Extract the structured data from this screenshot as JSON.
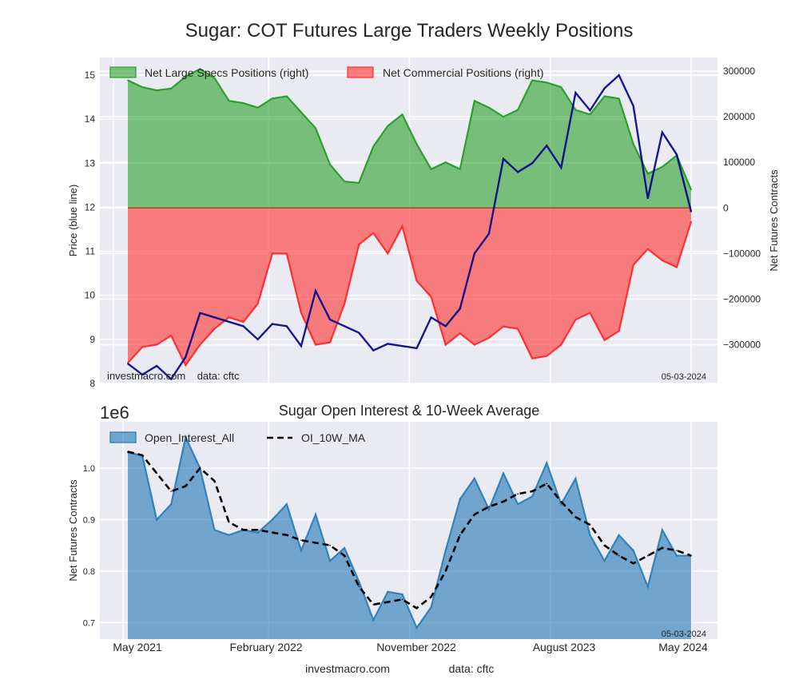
{
  "figure": {
    "title": "Sugar: COT Futures Large Traders Weekly Positions",
    "footer_site": "investmacro.com",
    "footer_data": "data: cftc"
  },
  "chart_data": [
    {
      "type": "area",
      "title": "Sugar: COT Futures Large Traders Weekly Positions",
      "ylabel_left": "Price (blue line)",
      "ylabel_right": "Net Futures Contracts",
      "ylim_left": [
        8,
        15.4
      ],
      "ylim_right": [
        -385000,
        330000
      ],
      "yticks_left": [
        "8",
        "9",
        "10",
        "11",
        "12",
        "13",
        "14",
        "15"
      ],
      "yticks_right": [
        "300000",
        "200000",
        "100000",
        "0",
        "-100000",
        "-200000",
        "-300000"
      ],
      "legend": [
        "Net Large Specs Positions (right)",
        "Net Commercial Positions (right)"
      ],
      "legend_placement": "top-left",
      "annotations": [
        "investmacro.com    data: cftc",
        "05-03-2024"
      ],
      "grid": true,
      "x_weeks": [
        0,
        4,
        8,
        12,
        16,
        20,
        24,
        28,
        32,
        36,
        40,
        44,
        48,
        52,
        56,
        60,
        64,
        68,
        72,
        76,
        80,
        84,
        88,
        92,
        96,
        100,
        104,
        108,
        112,
        116,
        120,
        124,
        128,
        132,
        136,
        140,
        144,
        148,
        152,
        156
      ],
      "series": [
        {
          "name": "Net Large Specs Positions (right)",
          "color": "#2ca02c",
          "values": [
            280000,
            265000,
            258000,
            262000,
            288000,
            305000,
            285000,
            235000,
            230000,
            220000,
            240000,
            245000,
            210000,
            175000,
            95000,
            58000,
            55000,
            135000,
            180000,
            205000,
            140000,
            85000,
            100000,
            85000,
            235000,
            220000,
            200000,
            215000,
            280000,
            275000,
            265000,
            215000,
            205000,
            245000,
            240000,
            140000,
            75000,
            90000,
            115000,
            40000
          ]
        },
        {
          "name": "Net Commercial Positions (right)",
          "color": "#ff2f2f",
          "values": [
            -340000,
            -305000,
            -300000,
            -280000,
            -345000,
            -300000,
            -265000,
            -240000,
            -250000,
            -210000,
            -100000,
            -100000,
            -230000,
            -300000,
            -295000,
            -210000,
            -80000,
            -55000,
            -100000,
            -40000,
            -160000,
            -195000,
            -300000,
            -275000,
            -300000,
            -285000,
            -260000,
            -265000,
            -330000,
            -325000,
            -300000,
            -245000,
            -230000,
            -290000,
            -270000,
            -125000,
            -90000,
            -115000,
            -130000,
            -30000
          ]
        },
        {
          "name": "Price (blue line)",
          "color": "#00008b",
          "values": [
            8.45,
            8.2,
            8.4,
            8.1,
            8.6,
            9.6,
            9.5,
            9.4,
            9.3,
            9.0,
            9.35,
            9.3,
            8.85,
            10.1,
            9.45,
            9.3,
            9.15,
            8.75,
            8.9,
            8.85,
            8.8,
            9.5,
            9.3,
            9.7,
            10.95,
            11.4,
            13.1,
            12.8,
            13.0,
            13.4,
            12.9,
            14.6,
            14.2,
            14.7,
            15.0,
            14.3,
            12.2,
            13.7,
            13.2,
            11.9
          ]
        }
      ]
    },
    {
      "type": "area",
      "title": "Sugar Open Interest & 10-Week Average",
      "offset_label": "1e6",
      "ylabel": "Net Futures Contracts",
      "ylim": [
        0.668,
        1.09
      ],
      "yticks": [
        "0.7",
        "0.8",
        "0.9",
        "1.0"
      ],
      "xticks": [
        "May 2021",
        "February 2022",
        "November 2022",
        "August 2023",
        "May 2024"
      ],
      "legend": [
        "Open_Interest_All",
        "OI_10W_MA"
      ],
      "legend_placement": "top-left",
      "annotations": [
        "05-03-2024"
      ],
      "grid": true,
      "x_weeks": [
        0,
        4,
        8,
        12,
        16,
        20,
        24,
        28,
        32,
        36,
        40,
        44,
        48,
        52,
        56,
        60,
        64,
        68,
        72,
        76,
        80,
        84,
        88,
        92,
        96,
        100,
        104,
        108,
        112,
        116,
        120,
        124,
        128,
        132,
        136,
        140,
        144,
        148,
        152,
        156
      ],
      "series": [
        {
          "name": "Open_Interest_All",
          "color": "#1f77b4",
          "values": [
            1.03,
            1.025,
            0.9,
            0.93,
            1.06,
            1.0,
            0.88,
            0.87,
            0.88,
            0.875,
            0.9,
            0.93,
            0.84,
            0.91,
            0.82,
            0.845,
            0.78,
            0.705,
            0.76,
            0.755,
            0.69,
            0.73,
            0.84,
            0.94,
            0.98,
            0.92,
            0.99,
            0.93,
            0.945,
            1.01,
            0.93,
            0.98,
            0.87,
            0.82,
            0.87,
            0.84,
            0.77,
            0.88,
            0.83,
            0.83
          ]
        },
        {
          "name": "OI_10W_MA",
          "color": "#000000",
          "values": [
            1.032,
            1.025,
            0.99,
            0.955,
            0.965,
            1.0,
            0.975,
            0.895,
            0.88,
            0.88,
            0.875,
            0.87,
            0.86,
            0.855,
            0.85,
            0.83,
            0.77,
            0.735,
            0.74,
            0.745,
            0.728,
            0.75,
            0.8,
            0.87,
            0.91,
            0.925,
            0.935,
            0.95,
            0.955,
            0.97,
            0.935,
            0.905,
            0.89,
            0.85,
            0.83,
            0.815,
            0.83,
            0.845,
            0.84,
            0.83
          ]
        }
      ]
    }
  ]
}
